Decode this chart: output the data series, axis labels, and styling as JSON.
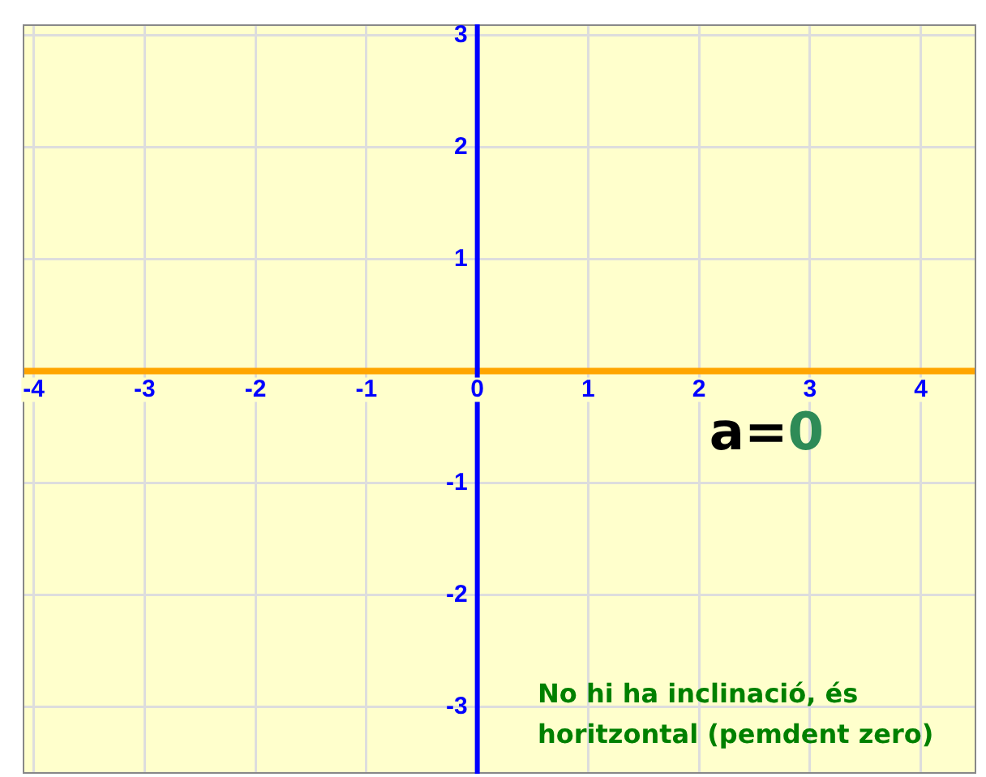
{
  "chart_data": {
    "type": "line",
    "series": [
      {
        "color": "#ffa500",
        "x": [
          -4.1,
          4.5
        ],
        "values": [
          0,
          0
        ]
      }
    ],
    "xlim": [
      -4.1,
      4.5
    ],
    "ylim": [
      -3.6,
      3.1
    ],
    "xticks": [
      -4,
      -3,
      -2,
      -1,
      0,
      1,
      2,
      3,
      4
    ],
    "yticks": [
      -3,
      -2,
      -1,
      {
        "value": 0,
        "label": null
      },
      1,
      2,
      3
    ],
    "grid": true,
    "legend": false,
    "marker": "none",
    "line_style": "solid",
    "annotations": [
      "a=0",
      "No hi ha inclinació, és horitzontal (pemdent zero)"
    ]
  }
}
